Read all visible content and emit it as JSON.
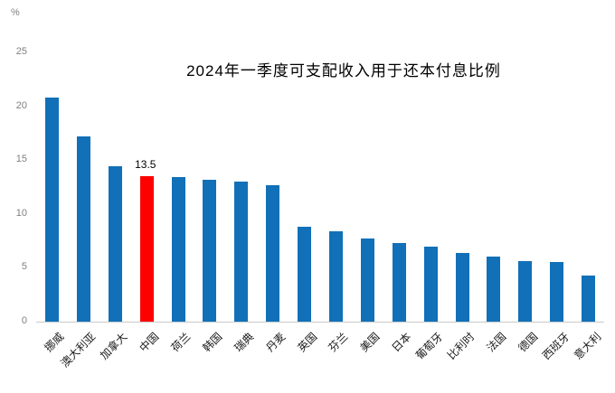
{
  "chart_data": {
    "type": "bar",
    "title": "2024年一季度可支配收入用于还本付息比例",
    "ylabel": "%",
    "xlabel": "",
    "ylim": [
      0,
      25
    ],
    "yticks": [
      0,
      5,
      10,
      15,
      20,
      25
    ],
    "grid": false,
    "legend": "none",
    "bar_color": "#1170B8",
    "categories": [
      "挪威",
      "澳大利亚",
      "加拿大",
      "中国",
      "荷兰",
      "韩国",
      "瑞典",
      "丹麦",
      "英国",
      "芬兰",
      "美国",
      "日本",
      "葡萄牙",
      "比利时",
      "法国",
      "德国",
      "西班牙",
      "意大利"
    ],
    "values": [
      20.8,
      17.2,
      14.4,
      13.5,
      13.4,
      13.2,
      13.0,
      12.7,
      8.8,
      8.4,
      7.7,
      7.3,
      7.0,
      6.4,
      6.0,
      5.6,
      5.5,
      4.3
    ],
    "highlight": {
      "category": "中国",
      "index": 3,
      "color": "#FF0000",
      "data_label": "13.5"
    }
  }
}
